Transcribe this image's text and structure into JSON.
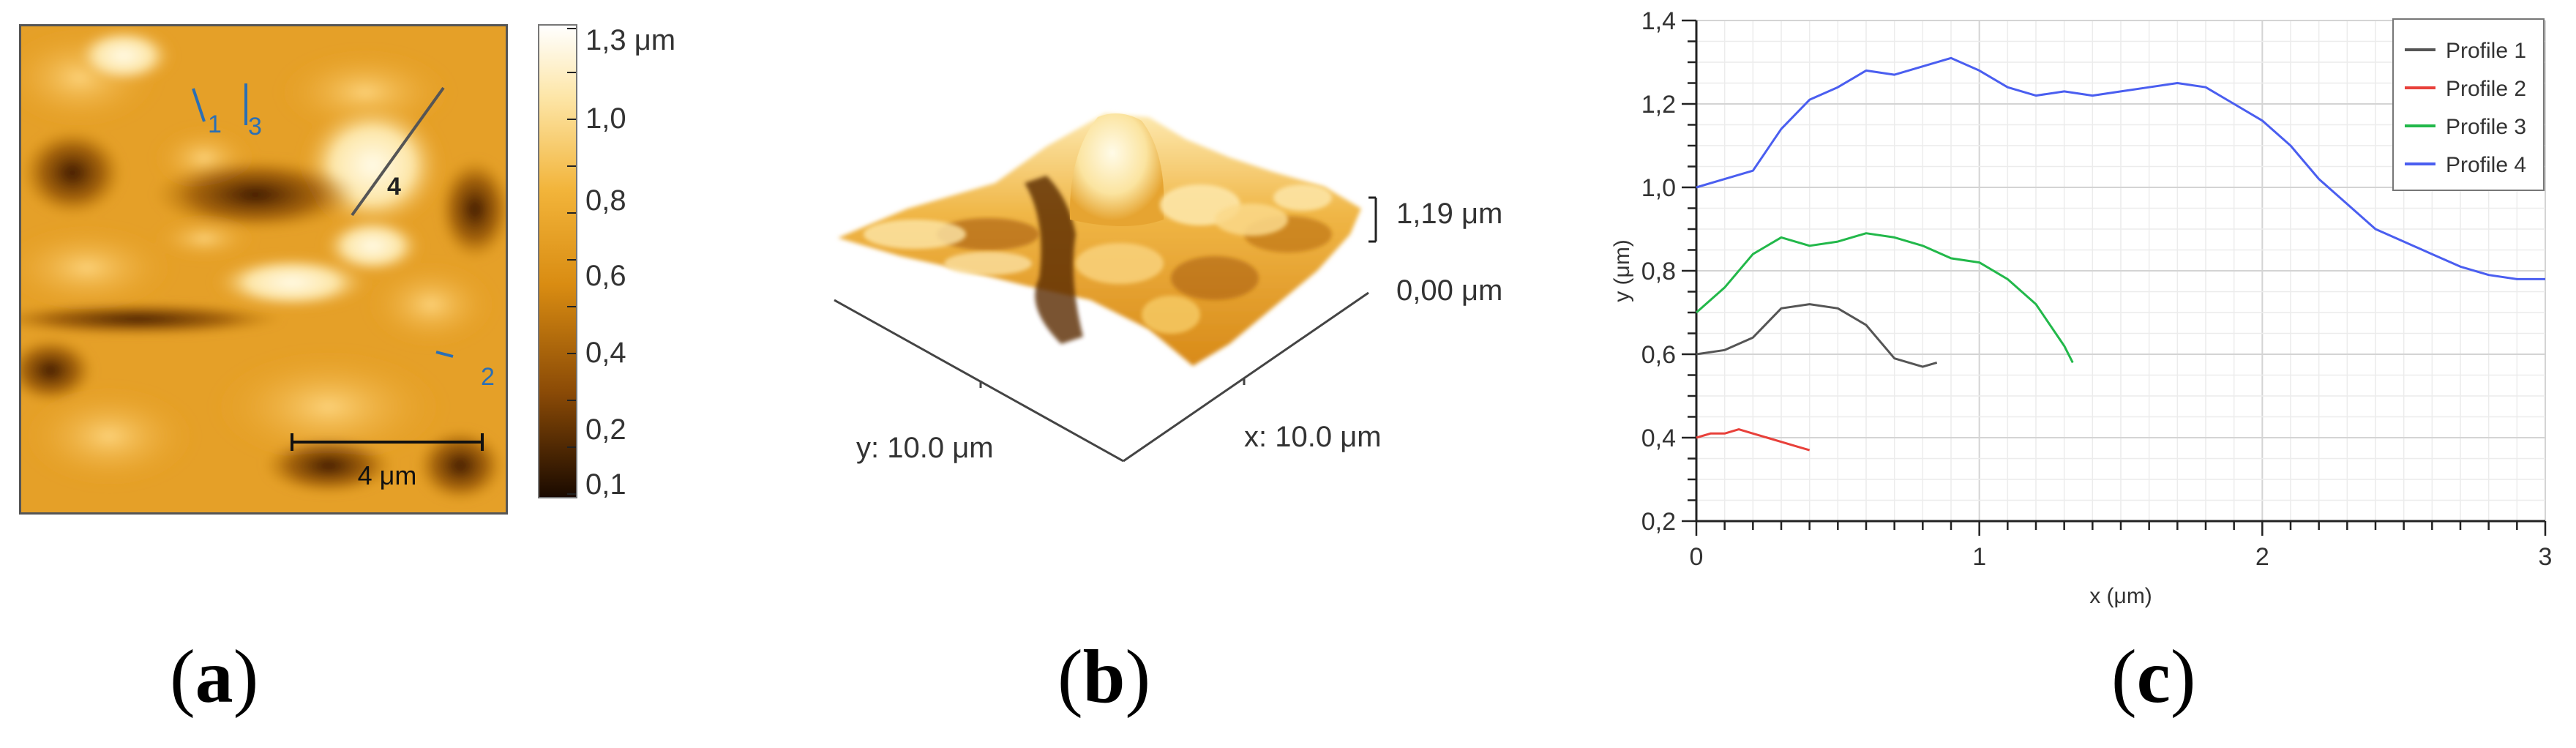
{
  "panels": {
    "a": {
      "label": "a"
    },
    "b": {
      "label": "b"
    },
    "c": {
      "label": "c"
    }
  },
  "afm_map": {
    "scale_bar_label": "4 μm",
    "profile_markers": [
      "1",
      "2",
      "3",
      "4"
    ],
    "colorbar": {
      "labels": [
        "1,3 μm",
        "1,0",
        "0,8",
        "0,6",
        "0,4",
        "0,2",
        "0,1"
      ],
      "colors": [
        "#1a0a00",
        "#8a4a06",
        "#d98c12",
        "#f2b43a",
        "#fde6a8",
        "#ffffff"
      ]
    },
    "colors": {
      "base": "#e8a023",
      "dark": "#5a2a04",
      "highlight": "#fff4c8",
      "marker": "#2a6fb5"
    }
  },
  "surface_3d": {
    "z_max_label": "1,19 μm",
    "z_min_label": "0,00 μm",
    "x_axis_label": "x: 10.0 μm",
    "y_axis_label": "y: 10.0 μm"
  },
  "chart_data": {
    "type": "line",
    "xlabel": "x (μm)",
    "ylabel": "y (μm)",
    "xlim": [
      0,
      3
    ],
    "ylim": [
      0.2,
      1.4
    ],
    "xticks": [
      "0",
      "1",
      "2",
      "3"
    ],
    "yticks": [
      "0,2",
      "0,4",
      "0,6",
      "0,8",
      "1,0",
      "1,2",
      "1,4"
    ],
    "grid": true,
    "legend_position": "top-right",
    "series": [
      {
        "name": "Profile 1",
        "color": "#555555",
        "x": [
          0,
          0.1,
          0.2,
          0.3,
          0.4,
          0.5,
          0.6,
          0.7,
          0.8,
          0.85
        ],
        "y": [
          0.6,
          0.61,
          0.64,
          0.71,
          0.72,
          0.71,
          0.67,
          0.59,
          0.57,
          0.58
        ]
      },
      {
        "name": "Profile 2",
        "color": "#e8403a",
        "x": [
          0,
          0.05,
          0.1,
          0.15,
          0.2,
          0.25,
          0.3,
          0.35,
          0.4
        ],
        "y": [
          0.4,
          0.41,
          0.41,
          0.42,
          0.41,
          0.4,
          0.39,
          0.38,
          0.37
        ]
      },
      {
        "name": "Profile 3",
        "color": "#22b84a",
        "x": [
          0,
          0.1,
          0.2,
          0.3,
          0.4,
          0.5,
          0.6,
          0.7,
          0.8,
          0.9,
          1.0,
          1.1,
          1.2,
          1.3,
          1.33
        ],
        "y": [
          0.7,
          0.76,
          0.84,
          0.88,
          0.86,
          0.87,
          0.89,
          0.88,
          0.86,
          0.83,
          0.82,
          0.78,
          0.72,
          0.62,
          0.58
        ]
      },
      {
        "name": "Profile 4",
        "color": "#4a5ef0",
        "x": [
          0,
          0.1,
          0.2,
          0.3,
          0.4,
          0.5,
          0.6,
          0.7,
          0.8,
          0.9,
          1.0,
          1.1,
          1.2,
          1.3,
          1.4,
          1.5,
          1.6,
          1.7,
          1.8,
          1.9,
          2.0,
          2.1,
          2.2,
          2.3,
          2.4,
          2.5,
          2.6,
          2.7,
          2.8,
          2.9,
          3.0
        ],
        "y": [
          1.0,
          1.02,
          1.04,
          1.14,
          1.21,
          1.24,
          1.28,
          1.27,
          1.29,
          1.31,
          1.28,
          1.24,
          1.22,
          1.23,
          1.22,
          1.23,
          1.24,
          1.25,
          1.24,
          1.2,
          1.16,
          1.1,
          1.02,
          0.96,
          0.9,
          0.87,
          0.84,
          0.81,
          0.79,
          0.78,
          0.78
        ]
      }
    ]
  }
}
